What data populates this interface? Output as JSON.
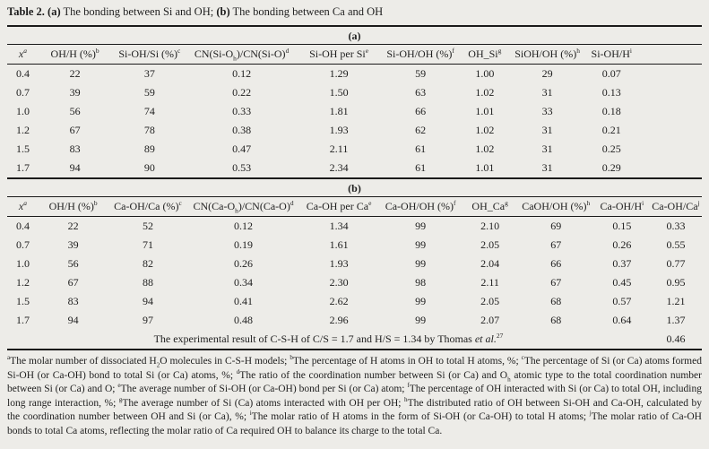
{
  "colors": {
    "paper_background": "#edece8",
    "ink": "#1e1e1e",
    "rule": "#1a1a1a"
  },
  "caption": {
    "bold1": "Table 2. (a)",
    "text1": " The bonding between Si and OH; ",
    "bold2": "(b)",
    "text2": " The bonding between Ca and OH"
  },
  "section_a": {
    "label": "(a)",
    "columns": [
      {
        "pre": "x",
        "sup": "a"
      },
      {
        "pre": "OH/H (%)",
        "sup": "b"
      },
      {
        "pre": "Si-OH/Si (%)",
        "sup": "c"
      },
      {
        "pre": "CN(Si-O",
        "sub": "h",
        "mid": ")/CN(Si-O)",
        "sup": "d"
      },
      {
        "pre": "Si-OH per Si",
        "sup": "e"
      },
      {
        "pre": "Si-OH/OH (%)",
        "sup": "f"
      },
      {
        "pre": "OH_Si",
        "sup": "g"
      },
      {
        "pre": "SiOH/OH (%)",
        "sup": "h"
      },
      {
        "pre": "Si-OH/H",
        "sup": "i"
      }
    ],
    "rows": [
      [
        "0.4",
        "22",
        "37",
        "0.12",
        "1.29",
        "59",
        "1.00",
        "29",
        "0.07"
      ],
      [
        "0.7",
        "39",
        "59",
        "0.22",
        "1.50",
        "63",
        "1.02",
        "31",
        "0.13"
      ],
      [
        "1.0",
        "56",
        "74",
        "0.33",
        "1.81",
        "66",
        "1.01",
        "33",
        "0.18"
      ],
      [
        "1.2",
        "67",
        "78",
        "0.38",
        "1.93",
        "62",
        "1.02",
        "31",
        "0.21"
      ],
      [
        "1.5",
        "83",
        "89",
        "0.47",
        "2.11",
        "61",
        "1.02",
        "31",
        "0.25"
      ],
      [
        "1.7",
        "94",
        "90",
        "0.53",
        "2.34",
        "61",
        "1.01",
        "31",
        "0.29"
      ]
    ]
  },
  "section_b": {
    "label": "(b)",
    "columns": [
      {
        "pre": "x",
        "sup": "a"
      },
      {
        "pre": "OH/H (%)",
        "sup": "b"
      },
      {
        "pre": "Ca-OH/Ca (%)",
        "sup": "c"
      },
      {
        "pre": "CN(Ca-O",
        "sub": "h",
        "mid": ")/CN(Ca-O)",
        "sup": "d"
      },
      {
        "pre": "Ca-OH per Ca",
        "sup": "e"
      },
      {
        "pre": "Ca-OH/OH (%)",
        "sup": "f"
      },
      {
        "pre": "OH_Ca",
        "sup": "g"
      },
      {
        "pre": "CaOH/OH (%)",
        "sup": "h"
      },
      {
        "pre": "Ca-OH/H",
        "sup": "i"
      },
      {
        "pre": "Ca-OH/Ca",
        "sup": "j"
      }
    ],
    "rows": [
      [
        "0.4",
        "22",
        "52",
        "0.12",
        "1.34",
        "99",
        "2.10",
        "69",
        "0.15",
        "0.33"
      ],
      [
        "0.7",
        "39",
        "71",
        "0.19",
        "1.61",
        "99",
        "2.05",
        "67",
        "0.26",
        "0.55"
      ],
      [
        "1.0",
        "56",
        "82",
        "0.26",
        "1.93",
        "99",
        "2.04",
        "66",
        "0.37",
        "0.77"
      ],
      [
        "1.2",
        "67",
        "88",
        "0.34",
        "2.30",
        "98",
        "2.11",
        "67",
        "0.45",
        "0.95"
      ],
      [
        "1.5",
        "83",
        "94",
        "0.41",
        "2.62",
        "99",
        "2.05",
        "68",
        "0.57",
        "1.21"
      ],
      [
        "1.7",
        "94",
        "97",
        "0.48",
        "2.96",
        "99",
        "2.07",
        "68",
        "0.64",
        "1.37"
      ]
    ],
    "experimental": {
      "text": "The experimental result of C-S-H of C/S = 1.7 and H/S = 1.34 by Thomas ",
      "etal": "et al.",
      "ref": "27",
      "value": "0.46"
    }
  },
  "footnotes": {
    "items": [
      {
        "sup": "a",
        "segments": [
          {
            "t": "The molar number of dissociated H"
          },
          {
            "sub": "2"
          },
          {
            "t": "O molecules in C-S-H models; "
          }
        ]
      },
      {
        "sup": "b",
        "segments": [
          {
            "t": "The percentage of H atoms in OH to total H atoms, %; "
          }
        ]
      },
      {
        "sup": "c",
        "segments": [
          {
            "t": "The percentage of Si (or Ca) atoms formed Si-OH (or Ca-OH) bond to total Si (or Ca) atoms, %; "
          }
        ]
      },
      {
        "sup": "d",
        "segments": [
          {
            "t": "The ratio of the coordination number between Si (or Ca) and O"
          },
          {
            "sub": "h"
          },
          {
            "t": " atomic type to the total coordination number between Si (or Ca) and O; "
          }
        ]
      },
      {
        "sup": "e",
        "segments": [
          {
            "t": "The average number of Si-OH (or Ca-OH) bond per Si (or Ca) atom; "
          }
        ]
      },
      {
        "sup": "f",
        "segments": [
          {
            "t": "The percentage of OH interacted with Si (or Ca) to total OH, including long range interaction, %; "
          }
        ]
      },
      {
        "sup": "g",
        "segments": [
          {
            "t": "The average number of Si (Ca) atoms interacted with OH per OH; "
          }
        ]
      },
      {
        "sup": "h",
        "segments": [
          {
            "t": "The distributed ratio of OH between Si-OH and Ca-OH, calculated by the coordination number between OH and Si (or Ca), %; "
          }
        ]
      },
      {
        "sup": "i",
        "segments": [
          {
            "t": "The molar ratio of H atoms in the form of Si-OH (or Ca-OH) to total H atoms; "
          }
        ]
      },
      {
        "sup": "j",
        "segments": [
          {
            "t": "The molar ratio of Ca-OH bonds to total Ca atoms, reflecting the molar ratio of Ca required OH to balance its charge to the total Ca."
          }
        ]
      }
    ]
  }
}
